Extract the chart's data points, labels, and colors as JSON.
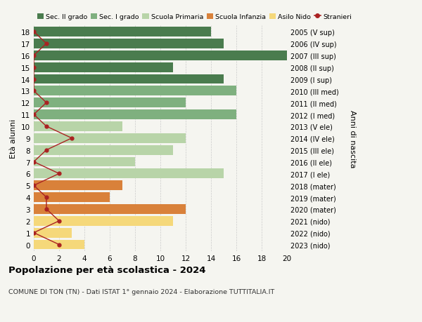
{
  "ages": [
    18,
    17,
    16,
    15,
    14,
    13,
    12,
    11,
    10,
    9,
    8,
    7,
    6,
    5,
    4,
    3,
    2,
    1,
    0
  ],
  "right_labels": [
    "2005 (V sup)",
    "2006 (IV sup)",
    "2007 (III sup)",
    "2008 (II sup)",
    "2009 (I sup)",
    "2010 (III med)",
    "2011 (II med)",
    "2012 (I med)",
    "2013 (V ele)",
    "2014 (IV ele)",
    "2015 (III ele)",
    "2016 (II ele)",
    "2017 (I ele)",
    "2018 (mater)",
    "2019 (mater)",
    "2020 (mater)",
    "2021 (nido)",
    "2022 (nido)",
    "2023 (nido)"
  ],
  "bar_values": [
    14,
    15,
    20,
    11,
    15,
    16,
    12,
    16,
    7,
    12,
    11,
    8,
    15,
    7,
    6,
    12,
    11,
    3,
    4
  ],
  "bar_colors": [
    "#4a7c4e",
    "#4a7c4e",
    "#4a7c4e",
    "#4a7c4e",
    "#4a7c4e",
    "#7fb07f",
    "#7fb07f",
    "#7fb07f",
    "#b8d4a8",
    "#b8d4a8",
    "#b8d4a8",
    "#b8d4a8",
    "#b8d4a8",
    "#d9813a",
    "#d9813a",
    "#d9813a",
    "#f5d87a",
    "#f5d87a",
    "#f5d87a"
  ],
  "stranieri_values": [
    0,
    1,
    0,
    0,
    0,
    0,
    1,
    0,
    1,
    3,
    1,
    0,
    2,
    0,
    1,
    1,
    2,
    0,
    2
  ],
  "legend_labels": [
    "Sec. II grado",
    "Sec. I grado",
    "Scuola Primaria",
    "Scuola Infanzia",
    "Asilo Nido",
    "Stranieri"
  ],
  "legend_colors": [
    "#4a7c4e",
    "#7fb07f",
    "#b8d4a8",
    "#d9813a",
    "#f5d87a",
    "#aa2222"
  ],
  "title": "Popolazione per età scolastica - 2024",
  "subtitle": "COMUNE DI TON (TN) - Dati ISTAT 1° gennaio 2024 - Elaborazione TUTTITALIA.IT",
  "ylabel_left": "Età alunni",
  "ylabel_right": "Anni di nascita",
  "xlim_max": 20,
  "xticks": [
    0,
    2,
    4,
    6,
    8,
    10,
    12,
    14,
    16,
    18,
    20
  ],
  "background_color": "#f5f5f0",
  "grid_color": "#cccccc"
}
